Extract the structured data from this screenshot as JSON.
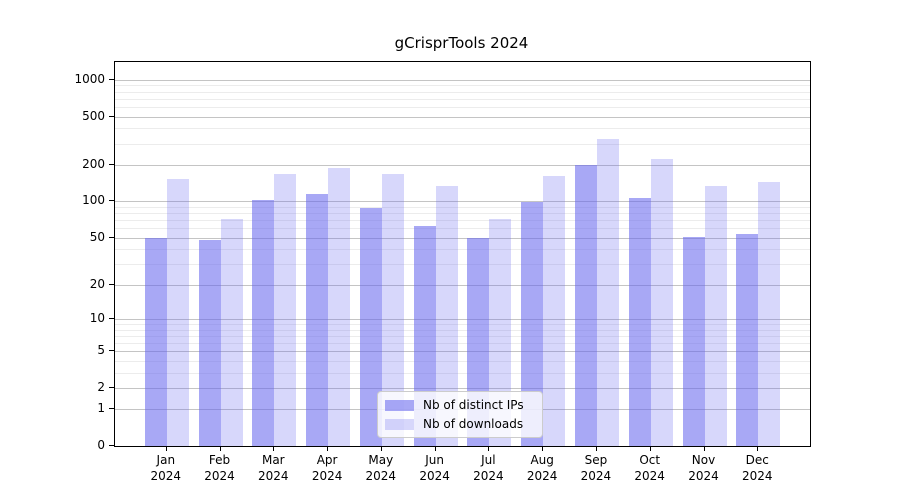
{
  "chart": {
    "title": "gCrisprTools 2024"
  },
  "chart_data": {
    "type": "bar",
    "title": "gCrisprTools 2024",
    "categories": [
      "Jan",
      "Feb",
      "Mar",
      "Apr",
      "May",
      "Jun",
      "Jul",
      "Aug",
      "Sep",
      "Oct",
      "Nov",
      "Dec"
    ],
    "category_year": "2024",
    "series": [
      {
        "name": "Nb of distinct IPs",
        "color": "rgba(102,102,238,0.57)",
        "values": [
          50,
          48,
          102,
          115,
          88,
          63,
          50,
          99,
          198,
          106,
          51,
          54
        ]
      },
      {
        "name": "Nb of downloads",
        "color": "rgba(102,102,238,0.26)",
        "values": [
          154,
          72,
          167,
          190,
          169,
          133,
          71,
          163,
          328,
          225,
          133,
          144
        ]
      }
    ],
    "xlabel": "",
    "ylabel": "",
    "yscale": "log1p",
    "ylim": [
      0,
      1400
    ],
    "yticks": [
      0,
      1,
      2,
      5,
      10,
      20,
      50,
      100,
      200,
      500,
      1000
    ],
    "minor_yticks": [
      3,
      4,
      6,
      7,
      8,
      9,
      30,
      40,
      60,
      70,
      80,
      90,
      300,
      400,
      600,
      700,
      800,
      900
    ],
    "grid": true,
    "legend_position": "lower center"
  }
}
